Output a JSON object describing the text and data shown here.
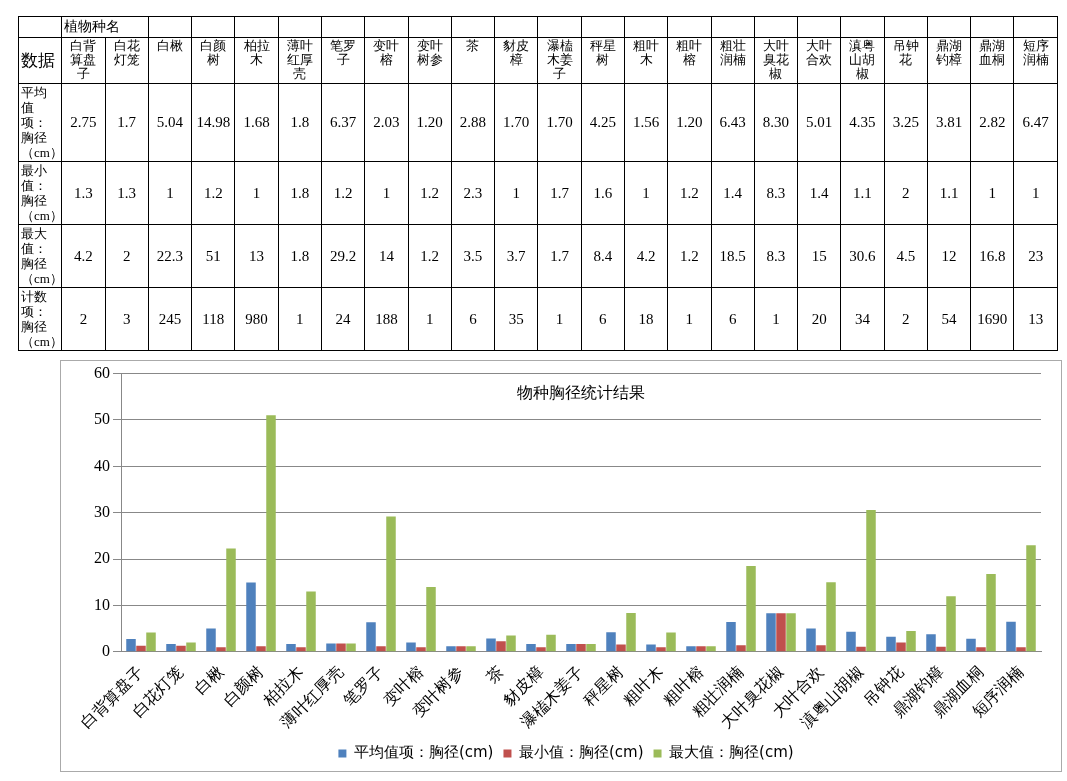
{
  "chart_data": [
    {
      "type": "other",
      "xlabel": "植物种名",
      "ylabel": "数据",
      "categories": [
        "白背算盘子",
        "白花灯笼",
        "白楸",
        "白颜树",
        "柏拉木",
        "薄叶红厚壳",
        "笔罗子",
        "变叶榕",
        "变叶树参",
        "茶",
        "豺皮樟",
        "瀑榼木姜子",
        "秤星树",
        "粗叶木",
        "粗叶榕",
        "粗壮润楠",
        "大叶臭花椒",
        "大叶合欢",
        "滇粤山胡椒",
        "吊钟花",
        "鼎湖钓樟",
        "鼎湖血桐",
        "短序润楠"
      ],
      "series": [
        {
          "name": "平均值项：胸径（cm）",
          "values": [
            2.75,
            1.7,
            5.04,
            14.98,
            1.68,
            1.8,
            6.37,
            2.03,
            1.2,
            2.88,
            1.7,
            1.7,
            4.25,
            1.56,
            1.2,
            6.43,
            8.3,
            5.01,
            4.35,
            3.25,
            3.81,
            2.82,
            6.47
          ],
          "value_labels": [
            "2.75",
            "1.7",
            "5.04",
            "14.98",
            "1.68",
            "1.8",
            "6.37",
            "2.03",
            "1.20",
            "2.88",
            "1.70",
            "1.70",
            "4.25",
            "1.56",
            "1.20",
            "6.43",
            "8.30",
            "5.01",
            "4.35",
            "3.25",
            "3.81",
            "2.82",
            "6.47"
          ]
        },
        {
          "name": "最小值：胸径（cm）",
          "values": [
            1.3,
            1.3,
            1,
            1.2,
            1,
            1.8,
            1.2,
            1,
            1.2,
            2.3,
            1,
            1.7,
            1.6,
            1,
            1.2,
            1.4,
            8.3,
            1.4,
            1.1,
            2,
            1.1,
            1,
            1
          ],
          "value_labels": [
            "1.3",
            "1.3",
            "1",
            "1.2",
            "1",
            "1.8",
            "1.2",
            "1",
            "1.2",
            "2.3",
            "1",
            "1.7",
            "1.6",
            "1",
            "1.2",
            "1.4",
            "8.3",
            "1.4",
            "1.1",
            "2",
            "1.1",
            "1",
            "1"
          ]
        },
        {
          "name": "最大值：胸径（cm）",
          "values": [
            4.2,
            2,
            22.3,
            51,
            13,
            1.8,
            29.2,
            14,
            1.2,
            3.5,
            3.7,
            1.7,
            8.4,
            4.2,
            1.2,
            18.5,
            8.3,
            15,
            30.6,
            4.5,
            12,
            16.8,
            23
          ],
          "value_labels": [
            "4.2",
            "2",
            "22.3",
            "51",
            "13",
            "1.8",
            "29.2",
            "14",
            "1.2",
            "3.5",
            "3.7",
            "1.7",
            "8.4",
            "4.2",
            "1.2",
            "18.5",
            "8.3",
            "15",
            "30.6",
            "4.5",
            "12",
            "16.8",
            "23"
          ]
        },
        {
          "name": "计数项：胸径（cm）",
          "values": [
            2,
            3,
            245,
            118,
            980,
            1,
            24,
            188,
            1,
            6,
            35,
            1,
            6,
            18,
            1,
            6,
            1,
            20,
            34,
            2,
            54,
            1690,
            13
          ],
          "value_labels": [
            "2",
            "3",
            "245",
            "118",
            "980",
            "1",
            "24",
            "188",
            "1",
            "6",
            "35",
            "1",
            "6",
            "18",
            "1",
            "6",
            "1",
            "20",
            "34",
            "2",
            "54",
            "1690",
            "13"
          ]
        }
      ]
    },
    {
      "type": "bar",
      "title": "物种胸径统计结果",
      "categories": [
        "白背算盘子",
        "白花灯笼",
        "白楸",
        "白颜树",
        "柏拉木",
        "薄叶红厚壳",
        "笔罗子",
        "变叶榕",
        "变叶树参",
        "茶",
        "豺皮樟",
        "瀑榼木姜子",
        "秤星树",
        "粗叶木",
        "粗叶榕",
        "粗壮润楠",
        "大叶臭花椒",
        "大叶合欢",
        "滇粤山胡椒",
        "吊钟花",
        "鼎湖钓樟",
        "鼎湖血桐",
        "短序润楠"
      ],
      "series": [
        {
          "name": "平均值项：胸径(cm)",
          "color": "#4f81bd",
          "values": [
            2.75,
            1.7,
            5.04,
            14.98,
            1.68,
            1.8,
            6.37,
            2.03,
            1.2,
            2.88,
            1.7,
            1.7,
            4.25,
            1.56,
            1.2,
            6.43,
            8.3,
            5.01,
            4.35,
            3.25,
            3.81,
            2.82,
            6.47
          ]
        },
        {
          "name": "最小值：胸径(cm)",
          "color": "#c0504d",
          "values": [
            1.3,
            1.3,
            1,
            1.2,
            1,
            1.8,
            1.2,
            1,
            1.2,
            2.3,
            1,
            1.7,
            1.6,
            1,
            1.2,
            1.4,
            8.3,
            1.4,
            1.1,
            2,
            1.1,
            1,
            1
          ]
        },
        {
          "name": "最大值：胸径(cm)",
          "color": "#9bbb59",
          "values": [
            4.2,
            2,
            22.3,
            51,
            13,
            1.8,
            29.2,
            14,
            1.2,
            3.5,
            3.7,
            1.7,
            8.4,
            4.2,
            1.2,
            18.5,
            8.3,
            15,
            30.6,
            4.5,
            12,
            16.8,
            23
          ]
        }
      ],
      "ylim": [
        0,
        60
      ],
      "yticks": [
        0,
        10,
        20,
        30,
        40,
        50,
        60
      ],
      "grid": "y",
      "legend": "bottom"
    }
  ]
}
